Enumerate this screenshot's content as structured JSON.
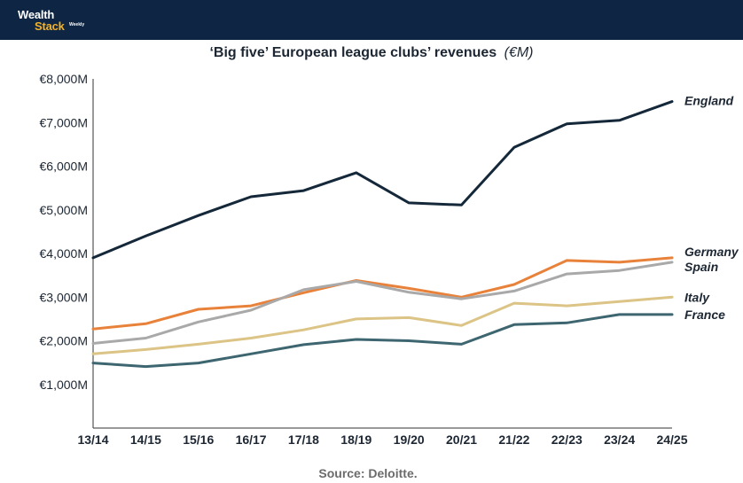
{
  "brand": {
    "line1": "Wealth",
    "line2": "Stack",
    "line3": "Weekly"
  },
  "colors": {
    "header_bg": "#0e2643",
    "brand_accent": "#f3b229"
  },
  "source": "Source: Deloitte.",
  "chart_data": {
    "type": "line",
    "title": "‘Big five’ European league clubs’ revenues",
    "title_unit": "(€M)",
    "xlabel": "",
    "ylabel": "",
    "categories": [
      "13/14",
      "14/15",
      "15/16",
      "16/17",
      "17/18",
      "18/19",
      "19/20",
      "20/21",
      "21/22",
      "22/23",
      "23/24",
      "24/25"
    ],
    "ylim": [
      0,
      8000
    ],
    "yticks": [
      1000,
      2000,
      3000,
      4000,
      5000,
      6000,
      7000,
      8000
    ],
    "ytick_labels": [
      "€1,000M",
      "€2,000M",
      "€3,000M",
      "€4,000M",
      "€5,000M",
      "€6,000M",
      "€7,000M",
      "€8,000M"
    ],
    "grid": false,
    "legend": "end-of-line labels",
    "series": [
      {
        "name": "England",
        "color": "#14283a",
        "values": [
          3900,
          4400,
          4870,
          5300,
          5440,
          5850,
          5160,
          5110,
          6430,
          6970,
          7050,
          7480
        ]
      },
      {
        "name": "Germany",
        "color": "#e8823a",
        "values": [
          2270,
          2390,
          2720,
          2800,
          3100,
          3380,
          3200,
          3000,
          3290,
          3840,
          3800,
          3900
        ]
      },
      {
        "name": "Spain",
        "color": "#a9a9a9",
        "values": [
          1940,
          2060,
          2430,
          2700,
          3170,
          3360,
          3110,
          2960,
          3140,
          3530,
          3610,
          3800
        ]
      },
      {
        "name": "Italy",
        "color": "#dcc486",
        "values": [
          1700,
          1800,
          1920,
          2060,
          2250,
          2500,
          2530,
          2350,
          2860,
          2800,
          2900,
          3000
        ]
      },
      {
        "name": "France",
        "color": "#3e6670",
        "values": [
          1490,
          1410,
          1490,
          1700,
          1910,
          2030,
          2000,
          1920,
          2370,
          2410,
          2600,
          2600
        ]
      }
    ]
  }
}
